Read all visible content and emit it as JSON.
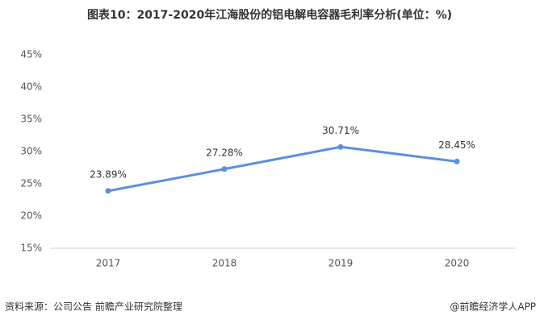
{
  "chart_data": {
    "type": "line",
    "title": "图表10：2017-2020年江海股份的铝电解电容器毛利率分析(单位：%)",
    "categories": [
      "2017",
      "2018",
      "2019",
      "2020"
    ],
    "series": [
      {
        "name": "毛利率",
        "color": "#5b8fe0",
        "values": [
          23.89,
          27.28,
          30.71,
          28.45
        ],
        "value_labels": [
          "23.89%",
          "27.28%",
          "30.71%",
          "28.45%"
        ]
      }
    ],
    "ylim": [
      15,
      45
    ],
    "yticks": [
      {
        "value": 15,
        "label": "15%"
      },
      {
        "value": 20,
        "label": "20%"
      },
      {
        "value": 25,
        "label": "25%"
      },
      {
        "value": 30,
        "label": "30%"
      },
      {
        "value": 35,
        "label": "35%"
      },
      {
        "value": 40,
        "label": "40%"
      },
      {
        "value": 45,
        "label": "45%"
      }
    ],
    "grid": false
  },
  "footer": {
    "source": "资料来源：公司公告 前瞻产业研究院整理",
    "brand": "@前瞻经济学人APP"
  }
}
